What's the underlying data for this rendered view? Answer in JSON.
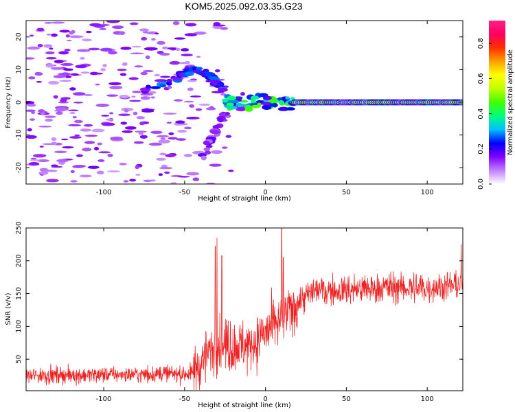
{
  "title": "KOM5.2025.092.03.35.G23",
  "chart_data": [
    {
      "type": "heatmap",
      "xlabel": "Height of straight line (km)",
      "ylabel": "Frequency (Hz)",
      "xlim": [
        -148,
        122
      ],
      "ylim": [
        -25,
        25
      ],
      "xticks": [
        -100,
        -50,
        0,
        50,
        100
      ],
      "yticks": [
        -20,
        -10,
        0,
        10,
        20
      ],
      "colorbar": {
        "label": "Normalized spectral amplitude",
        "range": [
          0,
          0.93
        ],
        "ticks": [
          0.0,
          0.2,
          0.4,
          0.6,
          0.8
        ],
        "colors": [
          "#ffffff",
          "#c080ff",
          "#8000ff",
          "#0000ff",
          "#00c0ff",
          "#00ff80",
          "#40ff00",
          "#c0ff00",
          "#ffff00",
          "#ffa000",
          "#ff3000",
          "#ff0060",
          "#ff2080"
        ]
      },
      "features": [
        {
          "name": "noise",
          "x_range": [
            -148,
            -20
          ],
          "freq_range": [
            -25,
            25
          ],
          "amplitude": 0.12
        },
        {
          "name": "dispersive-arc-upper",
          "points": [
            [
              -75,
              4
            ],
            [
              -60,
              6
            ],
            [
              -50,
              9
            ],
            [
              -42,
              10
            ],
            [
              -35,
              8
            ],
            [
              -30,
              6
            ],
            [
              -25,
              2
            ]
          ],
          "amplitude": 0.2
        },
        {
          "name": "dispersive-arc-lower",
          "points": [
            [
              -25,
              -3
            ],
            [
              -30,
              -8
            ],
            [
              -35,
              -12
            ],
            [
              -38,
              -17
            ]
          ],
          "amplitude": 0.12
        },
        {
          "name": "transition-blob",
          "x_range": [
            -25,
            20
          ],
          "freq_center": 0,
          "amplitude": 0.35
        },
        {
          "name": "main-band",
          "x_range": [
            18,
            122
          ],
          "freq_center": 0,
          "amplitude": 0.55
        }
      ]
    },
    {
      "type": "line",
      "xlabel": "Height of straight line (km)",
      "ylabel": "SNR (v/v)",
      "xlim": [
        -148,
        122
      ],
      "ylim": [
        2,
        250
      ],
      "xticks": [
        -100,
        -50,
        0,
        50,
        100
      ],
      "yticks": [
        50,
        100,
        150,
        200,
        250
      ],
      "color": "#ee2222",
      "profile": [
        [
          -148,
          25
        ],
        [
          -45,
          28
        ],
        [
          -40,
          45
        ],
        [
          -30,
          75
        ],
        [
          -20,
          70
        ],
        [
          -10,
          70
        ],
        [
          0,
          90
        ],
        [
          10,
          110
        ],
        [
          20,
          135
        ],
        [
          30,
          155
        ],
        [
          50,
          155
        ],
        [
          80,
          160
        ],
        [
          100,
          158
        ],
        [
          122,
          165
        ]
      ],
      "spikes": [
        [
          -31,
          222
        ],
        [
          -30,
          235
        ],
        [
          -27,
          208
        ],
        [
          10,
          250
        ],
        [
          11,
          205
        ],
        [
          121,
          225
        ]
      ]
    }
  ]
}
